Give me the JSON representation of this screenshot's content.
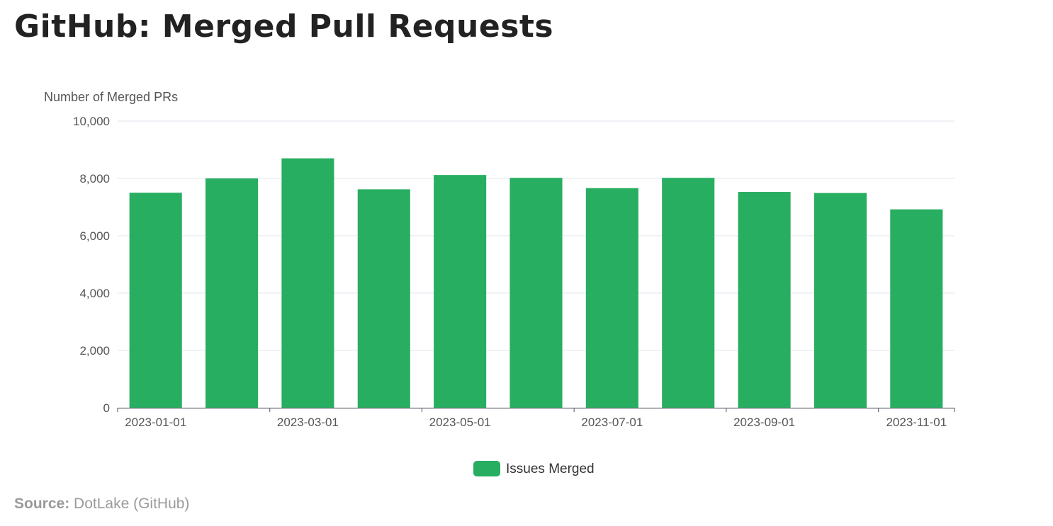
{
  "page": {
    "title": "GitHub: Merged Pull Requests",
    "source_label": "Source:",
    "source_value": "DotLake (GitHub)"
  },
  "chart_data": {
    "type": "bar",
    "title": "GitHub: Merged Pull Requests",
    "xlabel": "",
    "ylabel": "Number of Merged PRs",
    "ylim": [
      0,
      10000
    ],
    "y_ticks": [
      0,
      2000,
      4000,
      6000,
      8000,
      10000
    ],
    "y_tick_labels": [
      "0",
      "2,000",
      "4,000",
      "6,000",
      "8,000",
      "10,000"
    ],
    "categories": [
      "2023-01-01",
      "2023-02-01",
      "2023-03-01",
      "2023-04-01",
      "2023-05-01",
      "2023-06-01",
      "2023-07-01",
      "2023-08-01",
      "2023-09-01",
      "2023-10-01",
      "2023-11-01"
    ],
    "x_tick_labels": [
      "2023-01-01",
      "",
      "2023-03-01",
      "",
      "2023-05-01",
      "",
      "2023-07-01",
      "",
      "2023-09-01",
      "",
      "2023-11-01"
    ],
    "series": [
      {
        "name": "Issues Merged",
        "color": "#27ae60",
        "values": [
          7500,
          8000,
          8700,
          7620,
          8120,
          8020,
          7660,
          8020,
          7530,
          7490,
          6920
        ]
      }
    ],
    "grid": true,
    "legend": "bottom-center"
  }
}
